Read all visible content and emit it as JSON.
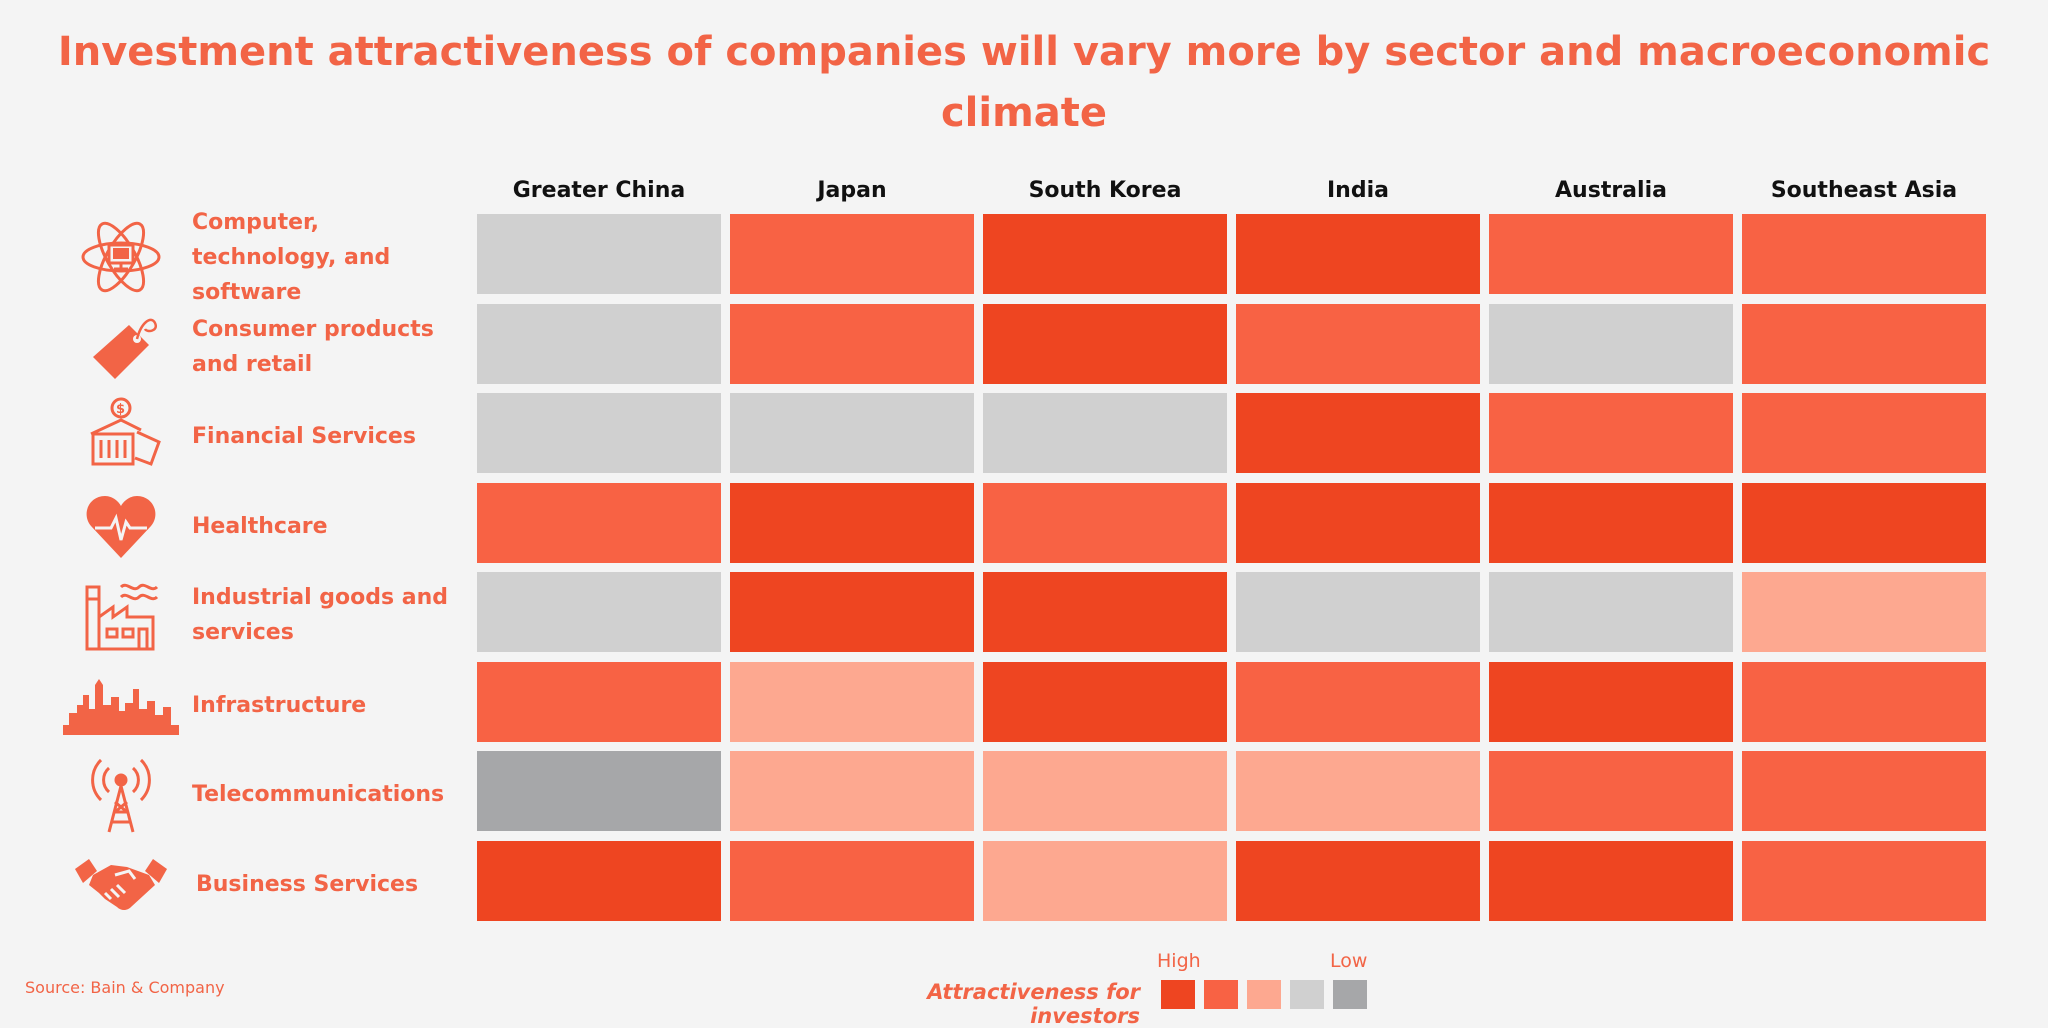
{
  "title": "Investment attractiveness of companies will vary more by sector and macroeconomic climate",
  "source": "Source: Bain & Company",
  "legend": {
    "label": "Attractiveness for investors",
    "high_label": "High",
    "low_label": "Low",
    "levels": [
      5,
      4,
      3,
      2,
      1
    ]
  },
  "colors": {
    "5": "#ee4521",
    "4": "#f86244",
    "3": "#fda890",
    "2": "#d0d0d0",
    "1": "#a6a7a9"
  },
  "chart_data": {
    "type": "heatmap",
    "title": "Investment attractiveness of companies will vary more by sector and macroeconomic climate",
    "x_categories": [
      "Greater China",
      "Japan",
      "South Korea",
      "India",
      "Australia",
      "Southeast Asia"
    ],
    "y_categories": [
      "Computer, technology, and software",
      "Consumer products and retail",
      "Financial Services",
      "Healthcare",
      "Industrial goods and services",
      "Infrastructure",
      "Telecommunications",
      "Business Services"
    ],
    "scale": "5 = High, 1 = Low",
    "values": [
      [
        2,
        4,
        5,
        5,
        4,
        4
      ],
      [
        2,
        4,
        5,
        4,
        2,
        4
      ],
      [
        2,
        2,
        2,
        5,
        4,
        4
      ],
      [
        4,
        5,
        4,
        5,
        5,
        5
      ],
      [
        2,
        5,
        5,
        2,
        2,
        3
      ],
      [
        4,
        3,
        5,
        4,
        5,
        4
      ],
      [
        1,
        3,
        3,
        3,
        4,
        4
      ],
      [
        5,
        4,
        3,
        5,
        5,
        4
      ]
    ]
  },
  "icons": [
    "atom-computer-icon",
    "price-tag-icon",
    "bank-money-icon",
    "heart-pulse-icon",
    "factory-icon",
    "city-skyline-icon",
    "radio-tower-icon",
    "handshake-icon"
  ]
}
